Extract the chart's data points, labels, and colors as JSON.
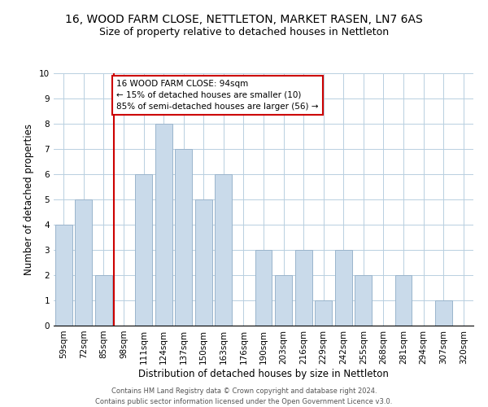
{
  "title": "16, WOOD FARM CLOSE, NETTLETON, MARKET RASEN, LN7 6AS",
  "subtitle": "Size of property relative to detached houses in Nettleton",
  "xlabel": "Distribution of detached houses by size in Nettleton",
  "ylabel": "Number of detached properties",
  "bar_labels": [
    "59sqm",
    "72sqm",
    "85sqm",
    "98sqm",
    "111sqm",
    "124sqm",
    "137sqm",
    "150sqm",
    "163sqm",
    "176sqm",
    "190sqm",
    "203sqm",
    "216sqm",
    "229sqm",
    "242sqm",
    "255sqm",
    "268sqm",
    "281sqm",
    "294sqm",
    "307sqm",
    "320sqm"
  ],
  "bar_heights": [
    4,
    5,
    2,
    0,
    6,
    8,
    7,
    5,
    6,
    0,
    3,
    2,
    3,
    1,
    3,
    2,
    0,
    2,
    0,
    1,
    0
  ],
  "bar_color": "#c9daea",
  "bar_edgecolor": "#9ab5cc",
  "grid_color": "#b8cfe0",
  "property_line_color": "#cc0000",
  "property_line_index": 2.5,
  "annotation_text": "16 WOOD FARM CLOSE: 94sqm\n← 15% of detached houses are smaller (10)\n85% of semi-detached houses are larger (56) →",
  "annotation_box_edgecolor": "#cc0000",
  "annotation_box_facecolor": "#ffffff",
  "ylim": [
    0,
    10
  ],
  "yticks": [
    0,
    1,
    2,
    3,
    4,
    5,
    6,
    7,
    8,
    9,
    10
  ],
  "footer_line1": "Contains HM Land Registry data © Crown copyright and database right 2024.",
  "footer_line2": "Contains public sector information licensed under the Open Government Licence v3.0.",
  "title_fontsize": 10,
  "subtitle_fontsize": 9,
  "ylabel_fontsize": 8.5,
  "xlabel_fontsize": 8.5,
  "tick_fontsize": 7.5,
  "annotation_fontsize": 7.5,
  "footer_fontsize": 6
}
